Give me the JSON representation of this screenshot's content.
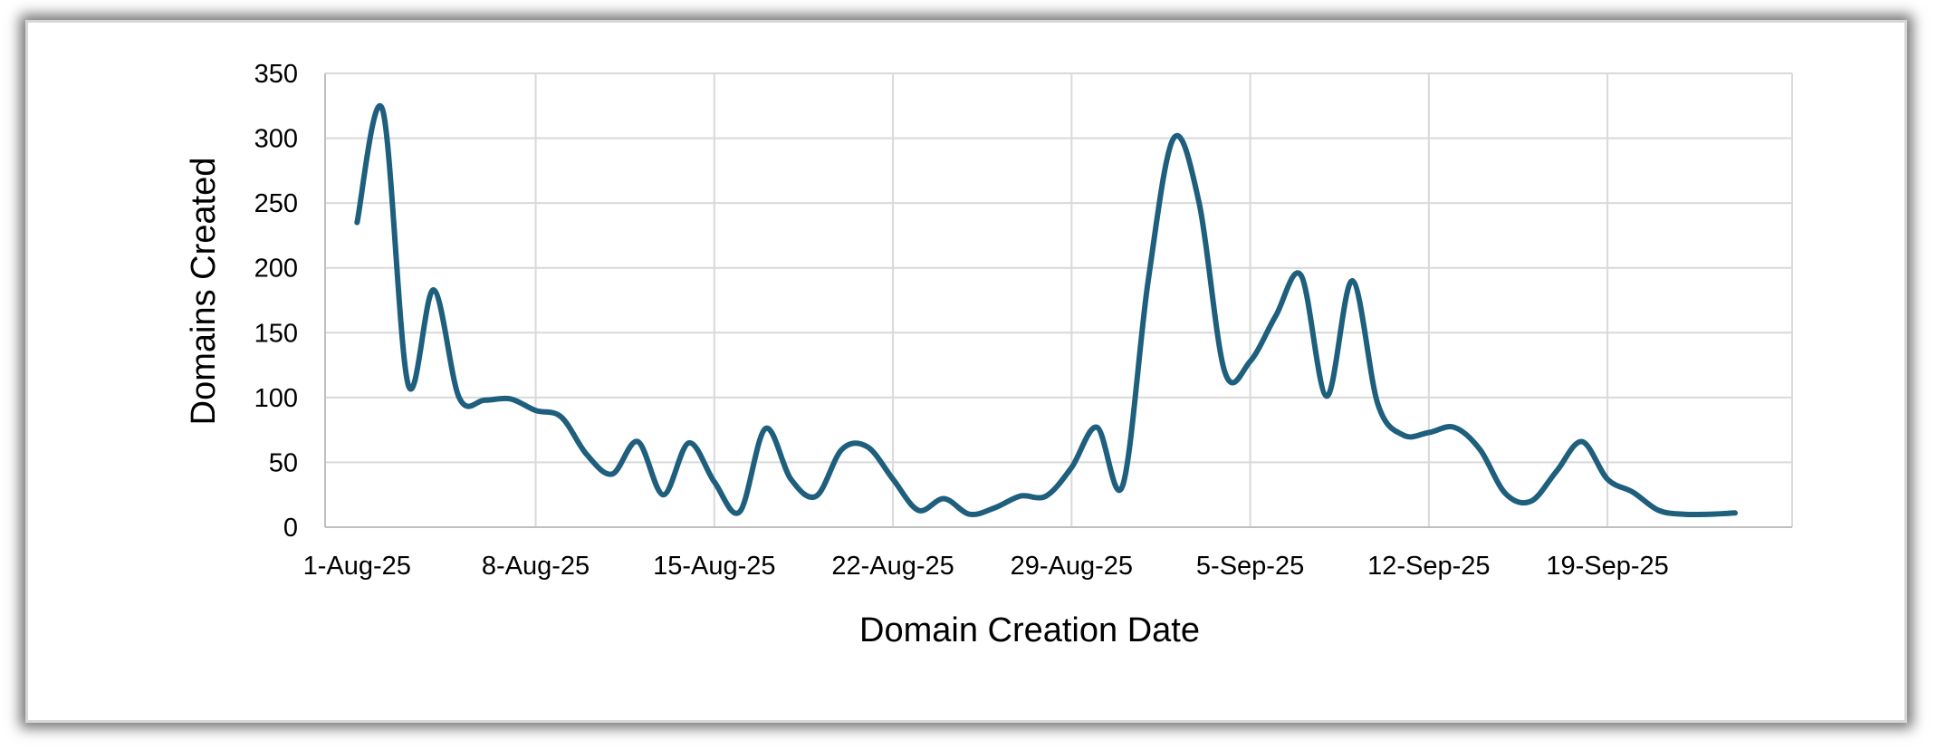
{
  "chart_data": {
    "type": "line",
    "title": "",
    "xlabel": "Domain Creation Date",
    "ylabel": "Domains Created",
    "ylim": [
      0,
      350
    ],
    "yticks": [
      0,
      50,
      100,
      150,
      200,
      250,
      300,
      350
    ],
    "xticks": [
      "1-Aug-25",
      "8-Aug-25",
      "15-Aug-25",
      "22-Aug-25",
      "29-Aug-25",
      "5-Sep-25",
      "12-Sep-25",
      "19-Sep-25"
    ],
    "grid": true,
    "legend": "none",
    "colors": {
      "line": "#1e5f7d",
      "grid": "#d9d9d9",
      "axis": "#bfbfbf"
    },
    "series": [
      {
        "x": [
          "1-Aug-25",
          "2-Aug-25",
          "3-Aug-25",
          "4-Aug-25",
          "5-Aug-25",
          "6-Aug-25",
          "7-Aug-25",
          "8-Aug-25",
          "9-Aug-25",
          "10-Aug-25",
          "11-Aug-25",
          "12-Aug-25",
          "13-Aug-25",
          "14-Aug-25",
          "15-Aug-25",
          "16-Aug-25",
          "17-Aug-25",
          "18-Aug-25",
          "19-Aug-25",
          "20-Aug-25",
          "21-Aug-25",
          "22-Aug-25",
          "23-Aug-25",
          "24-Aug-25",
          "25-Aug-25",
          "26-Aug-25",
          "27-Aug-25",
          "28-Aug-25",
          "29-Aug-25",
          "30-Aug-25",
          "31-Aug-25",
          "1-Sep-25",
          "2-Sep-25",
          "3-Sep-25",
          "4-Sep-25",
          "5-Sep-25",
          "6-Sep-25",
          "7-Sep-25",
          "8-Sep-25",
          "9-Sep-25",
          "10-Sep-25",
          "11-Sep-25",
          "12-Sep-25",
          "13-Sep-25",
          "14-Sep-25",
          "15-Sep-25",
          "16-Sep-25",
          "17-Sep-25",
          "18-Sep-25",
          "19-Sep-25",
          "20-Sep-25",
          "21-Sep-25",
          "22-Sep-25",
          "23-Sep-25",
          "24-Sep-25"
        ],
        "values": [
          235,
          322,
          110,
          183,
          100,
          98,
          99,
          90,
          85,
          56,
          41,
          66,
          25,
          65,
          35,
          12,
          76,
          37,
          24,
          60,
          62,
          37,
          13,
          22,
          10,
          15,
          24,
          24,
          46,
          77,
          32,
          190,
          300,
          250,
          120,
          128,
          163,
          194,
          101,
          190,
          95,
          71,
          73,
          77,
          60,
          26,
          20,
          43,
          66,
          37,
          27,
          13,
          10,
          10,
          11
        ]
      }
    ]
  }
}
